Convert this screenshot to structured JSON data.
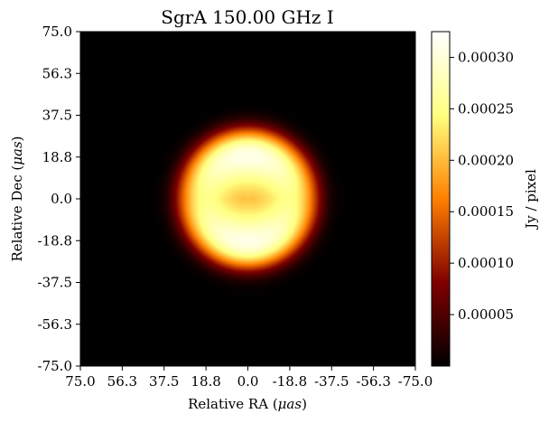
{
  "chart_data": {
    "type": "heatmap",
    "title": "SgrA 150.00 GHz I",
    "xlabel_text": "Relative RA (",
    "xlabel_unit": "μas",
    "ylabel_text": "Relative Dec (",
    "ylabel_unit": "μas",
    "x_ticks": [
      "75.0",
      "56.3",
      "37.5",
      "18.8",
      "0.0",
      "-18.8",
      "-37.5",
      "-56.3",
      "-75.0"
    ],
    "y_ticks": [
      "75.0",
      "56.3",
      "37.5",
      "18.8",
      "0.0",
      "-18.8",
      "-37.5",
      "-56.3",
      "-75.0"
    ],
    "xlim": [
      75.0,
      -75.0
    ],
    "ylim": [
      -75.0,
      75.0
    ],
    "colorbar": {
      "label": "Jy / pixel",
      "ticks": [
        "0.00005",
        "0.00010",
        "0.00015",
        "0.00020",
        "0.00025",
        "0.00030"
      ],
      "tick_values": [
        5e-05,
        0.0001,
        0.00015,
        0.0002,
        0.00025,
        0.0003
      ],
      "range": [
        0.0,
        0.000325
      ],
      "colormap": "afmhot"
    },
    "image": {
      "description_values": {
        "ring_radius_uas": 22,
        "ring_width_uas": 14,
        "peak_north_dec_uas": 20,
        "peak_south_dec_uas": -20,
        "peak_value": 0.000325,
        "center_value": 0.00021,
        "gap_sides_value": 0.00021
      }
    }
  }
}
